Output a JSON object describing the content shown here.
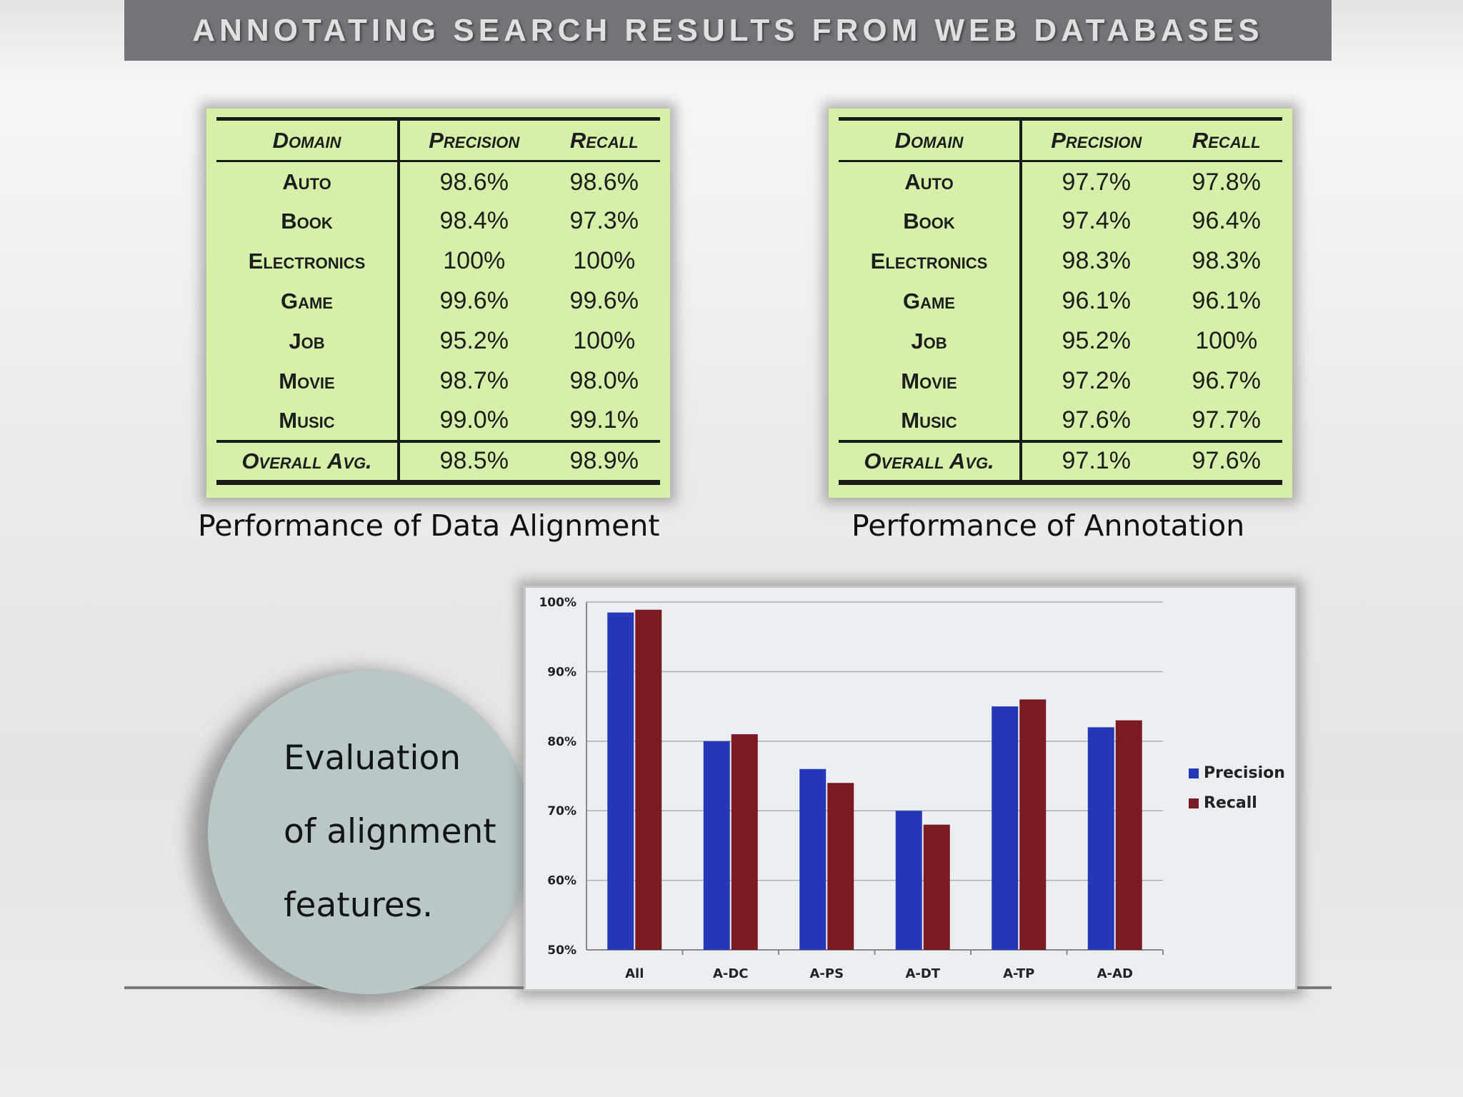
{
  "slide_title": "ANNOTATING SEARCH RESULTS FROM WEB DATABASES",
  "tables": [
    {
      "headers": [
        "Domain",
        "Precision",
        "Recall"
      ],
      "rows": [
        {
          "domain": "Auto",
          "precision": "98.6%",
          "recall": "98.6%"
        },
        {
          "domain": "Book",
          "precision": "98.4%",
          "recall": "97.3%"
        },
        {
          "domain": "Electronics",
          "precision": "100%",
          "recall": "100%"
        },
        {
          "domain": "Game",
          "precision": "99.6%",
          "recall": "99.6%"
        },
        {
          "domain": "Job",
          "precision": "95.2%",
          "recall": "100%"
        },
        {
          "domain": "Movie",
          "precision": "98.7%",
          "recall": "98.0%"
        },
        {
          "domain": "Music",
          "precision": "99.0%",
          "recall": "99.1%"
        }
      ],
      "overall": {
        "domain": "Overall Avg.",
        "precision": "98.5%",
        "recall": "98.9%"
      },
      "caption": "Performance of Data Alignment"
    },
    {
      "headers": [
        "Domain",
        "Precision",
        "Recall"
      ],
      "rows": [
        {
          "domain": "Auto",
          "precision": "97.7%",
          "recall": "97.8%"
        },
        {
          "domain": "Book",
          "precision": "97.4%",
          "recall": "96.4%"
        },
        {
          "domain": "Electronics",
          "precision": "98.3%",
          "recall": "98.3%"
        },
        {
          "domain": "Game",
          "precision": "96.1%",
          "recall": "96.1%"
        },
        {
          "domain": "Job",
          "precision": "95.2%",
          "recall": "100%"
        },
        {
          "domain": "Movie",
          "precision": "97.2%",
          "recall": "96.7%"
        },
        {
          "domain": "Music",
          "precision": "97.6%",
          "recall": "97.7%"
        }
      ],
      "overall": {
        "domain": "Overall Avg.",
        "precision": "97.1%",
        "recall": "97.6%"
      },
      "caption": "Performance of Annotation"
    }
  ],
  "circle_text": [
    "Evaluation",
    "of alignment",
    "features."
  ],
  "chart_data": {
    "type": "bar",
    "categories": [
      "All",
      "A-DC",
      "A-PS",
      "A-DT",
      "A-TP",
      "A-AD"
    ],
    "series": [
      {
        "name": "Precision",
        "color": "#2438b8",
        "values": [
          98.5,
          80,
          76,
          70,
          85,
          82
        ]
      },
      {
        "name": "Recall",
        "color": "#7a1a22",
        "values": [
          98.9,
          81,
          74,
          68,
          86,
          83
        ]
      }
    ],
    "ylim": [
      50,
      100
    ],
    "yticks": [
      50,
      60,
      70,
      80,
      90,
      100
    ],
    "ytick_labels": [
      "50%",
      "60%",
      "70%",
      "80%",
      "90%",
      "100%"
    ],
    "grid": true,
    "legend": "right"
  }
}
